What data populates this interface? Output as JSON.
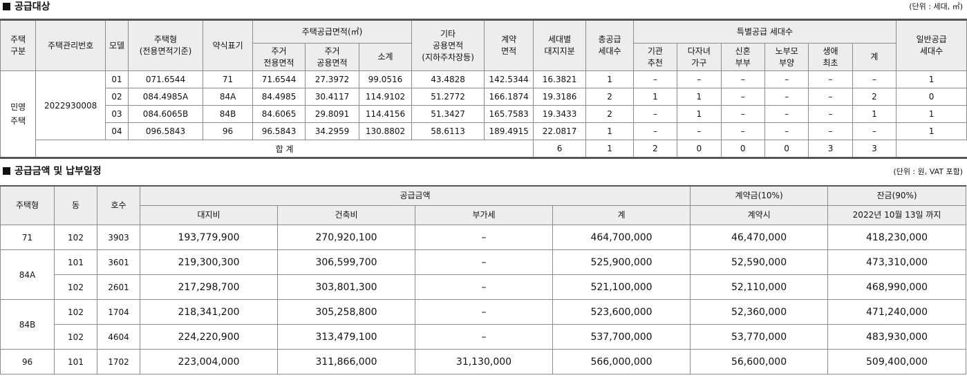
{
  "section1": {
    "title": "공급대상",
    "unit": "(단위 : 세대, ㎡)",
    "headers": {
      "house_type_l1": "주택",
      "house_type_l2": "구분",
      "mgmt_no": "주택관리번호",
      "model": "모델",
      "housing_type_l1": "주택형",
      "housing_type_l2": "(전용면적기준)",
      "short_label": "약식표기",
      "supply_area": "주택공급면적(㎡)",
      "res_exclusive_l1": "주거",
      "res_exclusive_l2": "전용면적",
      "res_common_l1": "주거",
      "res_common_l2": "공용면적",
      "subtotal": "소계",
      "other_common_l1": "기타",
      "other_common_l2": "공용면적",
      "other_common_l3": "(지하주차장등)",
      "contract_area_l1": "계약",
      "contract_area_l2": "면적",
      "land_share_l1": "세대별",
      "land_share_l2": "대지지분",
      "total_supply_l1": "총공급",
      "total_supply_l2": "세대수",
      "special": "특별공급 세대수",
      "sp_inst_l1": "기관",
      "sp_inst_l2": "추천",
      "sp_multi_l1": "다자녀",
      "sp_multi_l2": "가구",
      "sp_newlywed_l1": "신혼",
      "sp_newlywed_l2": "부부",
      "sp_elder_l1": "노부모",
      "sp_elder_l2": "부양",
      "sp_first_l1": "생애",
      "sp_first_l2": "최초",
      "sp_sum": "계",
      "general_l1": "일반공급",
      "general_l2": "세대수"
    },
    "house_kind_l1": "민영",
    "house_kind_l2": "주택",
    "mgmt_number": "2022930008",
    "rows": [
      {
        "model": "01",
        "type": "071.6544",
        "short": "71",
        "excl": "71.6544",
        "comm": "27.3972",
        "sub": "99.0516",
        "other": "43.4828",
        "contract": "142.5344",
        "land": "16.3821",
        "total": "1",
        "inst": "–",
        "multi": "–",
        "newly": "–",
        "elder": "–",
        "first": "–",
        "ssum": "–",
        "general": "1"
      },
      {
        "model": "02",
        "type": "084.4985A",
        "short": "84A",
        "excl": "84.4985",
        "comm": "30.4117",
        "sub": "114.9102",
        "other": "51.2772",
        "contract": "166.1874",
        "land": "19.3186",
        "total": "2",
        "inst": "1",
        "multi": "1",
        "newly": "–",
        "elder": "–",
        "first": "–",
        "ssum": "2",
        "general": "0"
      },
      {
        "model": "03",
        "type": "084.6065B",
        "short": "84B",
        "excl": "84.6065",
        "comm": "29.8091",
        "sub": "114.4156",
        "other": "51.3427",
        "contract": "165.7583",
        "land": "19.3433",
        "total": "2",
        "inst": "–",
        "multi": "1",
        "newly": "–",
        "elder": "–",
        "first": "–",
        "ssum": "1",
        "general": "1"
      },
      {
        "model": "04",
        "type": "096.5843",
        "short": "96",
        "excl": "96.5843",
        "comm": "34.2959",
        "sub": "130.8802",
        "other": "58.6113",
        "contract": "189.4915",
        "land": "22.0817",
        "total": "1",
        "inst": "–",
        "multi": "–",
        "newly": "–",
        "elder": "–",
        "first": "–",
        "ssum": "–",
        "general": "1"
      }
    ],
    "total_row": {
      "label": "합 계",
      "total": "6",
      "inst": "1",
      "multi": "2",
      "newly": "0",
      "elder": "0",
      "first": "0",
      "ssum": "3",
      "general": "3"
    }
  },
  "section2": {
    "title": "공급금액 및 납부일정",
    "unit": "(단위 : 원, VAT 포함)",
    "headers": {
      "type": "주택형",
      "dong": "동",
      "ho": "호수",
      "supply": "공급금액",
      "land": "대지비",
      "build": "건축비",
      "vat": "부가세",
      "sum": "계",
      "deposit": "계약금(10%)",
      "deposit_sub": "계약시",
      "balance": "잔금(90%)",
      "balance_sub": "2022년 10월 13일 까지"
    },
    "groups": [
      {
        "type": "71",
        "rows": [
          {
            "dong": "102",
            "ho": "3903",
            "land": "193,779,900",
            "build": "270,920,100",
            "vat": "–",
            "sum": "464,700,000",
            "deposit": "46,470,000",
            "balance": "418,230,000"
          }
        ]
      },
      {
        "type": "84A",
        "rows": [
          {
            "dong": "101",
            "ho": "3601",
            "land": "219,300,300",
            "build": "306,599,700",
            "vat": "–",
            "sum": "525,900,000",
            "deposit": "52,590,000",
            "balance": "473,310,000"
          },
          {
            "dong": "102",
            "ho": "2601",
            "land": "217,298,700",
            "build": "303,801,300",
            "vat": "–",
            "sum": "521,100,000",
            "deposit": "52,110,000",
            "balance": "468,990,000"
          }
        ]
      },
      {
        "type": "84B",
        "rows": [
          {
            "dong": "102",
            "ho": "1704",
            "land": "218,341,200",
            "build": "305,258,800",
            "vat": "–",
            "sum": "523,600,000",
            "deposit": "52,360,000",
            "balance": "471,240,000"
          },
          {
            "dong": "102",
            "ho": "4604",
            "land": "224,220,900",
            "build": "313,479,100",
            "vat": "–",
            "sum": "537,700,000",
            "deposit": "53,770,000",
            "balance": "483,930,000"
          }
        ]
      },
      {
        "type": "96",
        "rows": [
          {
            "dong": "101",
            "ho": "1702",
            "land": "223,004,000",
            "build": "311,866,000",
            "vat": "31,130,000",
            "sum": "566,000,000",
            "deposit": "56,600,000",
            "balance": "509,400,000"
          }
        ]
      }
    ]
  }
}
